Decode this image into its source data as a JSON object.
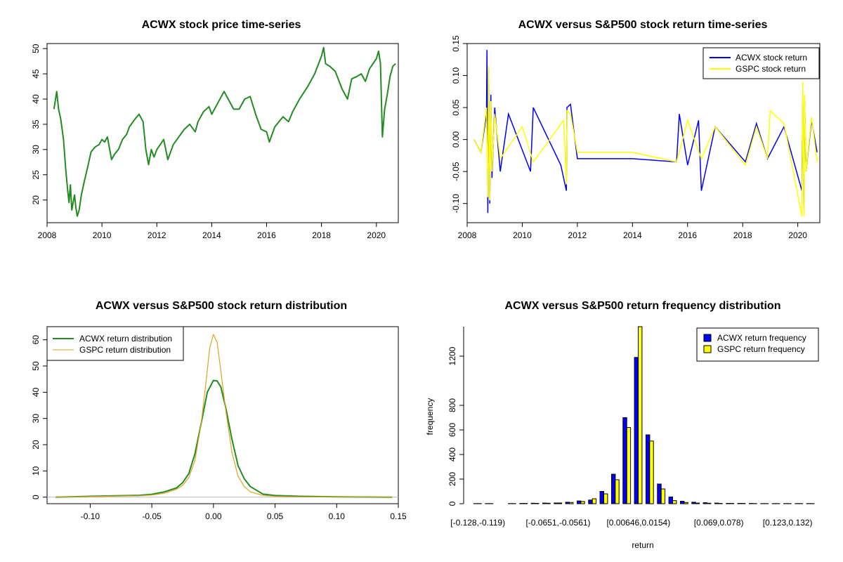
{
  "colors": {
    "price": "#228B22",
    "acwx_ret": "#0000FF",
    "gspc_ret": "#FFFF00",
    "acwx_density": "#228B22",
    "gspc_density": "#DAA520",
    "acwx_bar": "#0000FF",
    "gspc_bar": "#FFFF00"
  },
  "chart_data": [
    {
      "id": "price",
      "type": "line",
      "title": "ACWX stock price time-series",
      "xlabel": "",
      "ylabel": "",
      "xlim": [
        2008.0,
        2020.8
      ],
      "ylim": [
        15.5,
        51.0
      ],
      "x_ticks": [
        2008,
        2010,
        2012,
        2014,
        2016,
        2018,
        2020
      ],
      "x_tick_labels": [
        "2008",
        "2010",
        "2012",
        "2014",
        "2016",
        "2018",
        "2020"
      ],
      "y_ticks": [
        20,
        25,
        30,
        35,
        40,
        45,
        50
      ],
      "y_tick_labels": [
        "20",
        "25",
        "30",
        "35",
        "40",
        "45",
        "50"
      ],
      "series": [
        {
          "name": "ACWX price",
          "x": [
            2008.25,
            2008.35,
            2008.42,
            2008.5,
            2008.6,
            2008.68,
            2008.75,
            2008.8,
            2008.85,
            2008.9,
            2008.95,
            2009.0,
            2009.05,
            2009.1,
            2009.17,
            2009.25,
            2009.35,
            2009.5,
            2009.6,
            2009.75,
            2009.9,
            2010.0,
            2010.1,
            2010.2,
            2010.35,
            2010.45,
            2010.6,
            2010.75,
            2010.9,
            2011.0,
            2011.2,
            2011.35,
            2011.5,
            2011.6,
            2011.7,
            2011.8,
            2011.9,
            2012.0,
            2012.25,
            2012.4,
            2012.6,
            2012.8,
            2013.0,
            2013.2,
            2013.4,
            2013.5,
            2013.7,
            2013.9,
            2014.0,
            2014.2,
            2014.45,
            2014.6,
            2014.8,
            2015.0,
            2015.2,
            2015.4,
            2015.6,
            2015.8,
            2016.0,
            2016.1,
            2016.3,
            2016.45,
            2016.6,
            2016.8,
            2016.95,
            2017.2,
            2017.5,
            2017.75,
            2018.0,
            2018.08,
            2018.15,
            2018.3,
            2018.5,
            2018.75,
            2018.95,
            2019.1,
            2019.3,
            2019.45,
            2019.6,
            2019.75,
            2020.0,
            2020.08,
            2020.15,
            2020.22,
            2020.3,
            2020.4,
            2020.5,
            2020.6,
            2020.7
          ],
          "values": [
            38.0,
            41.5,
            38.0,
            36.0,
            32.0,
            26.0,
            22.0,
            19.5,
            23.0,
            18.0,
            19.5,
            21.0,
            18.5,
            16.8,
            18.0,
            21.0,
            23.5,
            27.0,
            29.5,
            30.5,
            31.0,
            32.0,
            31.5,
            32.5,
            28.0,
            29.0,
            30.0,
            32.0,
            33.0,
            34.5,
            36.0,
            37.0,
            35.5,
            30.0,
            27.0,
            30.0,
            28.5,
            30.0,
            32.0,
            28.0,
            31.0,
            32.5,
            34.0,
            35.0,
            33.5,
            35.5,
            37.5,
            38.5,
            37.0,
            39.0,
            41.5,
            40.0,
            38.0,
            38.0,
            40.0,
            40.5,
            37.0,
            34.0,
            33.5,
            31.5,
            34.5,
            35.5,
            36.5,
            35.5,
            37.5,
            40.0,
            42.5,
            45.0,
            48.5,
            50.2,
            47.0,
            46.5,
            45.5,
            42.0,
            40.0,
            44.0,
            44.5,
            45.0,
            43.5,
            46.0,
            48.0,
            49.5,
            47.0,
            32.5,
            38.0,
            41.0,
            44.5,
            46.5,
            47.0
          ]
        }
      ]
    },
    {
      "id": "returns",
      "type": "line",
      "title": "ACWX versus S&P500 stock return time-series",
      "xlabel": "",
      "ylabel": "",
      "xlim": [
        2008.0,
        2020.8
      ],
      "ylim": [
        -0.13,
        0.15
      ],
      "x_ticks": [
        2008,
        2010,
        2012,
        2014,
        2016,
        2018,
        2020
      ],
      "x_tick_labels": [
        "2008",
        "2010",
        "2012",
        "2014",
        "2016",
        "2018",
        "2020"
      ],
      "y_ticks": [
        -0.1,
        -0.05,
        0.0,
        0.05,
        0.1,
        0.15
      ],
      "y_tick_labels": [
        "-0.10",
        "-0.05",
        "0.00",
        "0.05",
        "0.10",
        "0.15"
      ],
      "legend": [
        "ACWX stock return",
        "GSPC stock return"
      ],
      "legend_position": "top-right",
      "series": [
        {
          "name": "ACWX stock return",
          "x": [
            2008.25,
            2008.5,
            2008.7,
            2008.72,
            2008.75,
            2008.78,
            2008.82,
            2008.86,
            2008.9,
            2009.0,
            2009.2,
            2009.5,
            2010.3,
            2010.4,
            2011.4,
            2011.6,
            2011.62,
            2011.75,
            2012.0,
            2014.0,
            2015.6,
            2015.7,
            2016.0,
            2016.4,
            2016.5,
            2017.0,
            2018.1,
            2018.5,
            2018.9,
            2019.5,
            2020.15,
            2020.18,
            2020.22,
            2020.25,
            2020.3,
            2020.5,
            2020.7
          ],
          "values": [
            0.0,
            -0.02,
            0.04,
            0.14,
            -0.115,
            0.11,
            -0.1,
            0.07,
            -0.06,
            0.05,
            -0.05,
            0.04,
            -0.05,
            0.05,
            -0.04,
            -0.08,
            0.05,
            0.055,
            -0.03,
            -0.03,
            -0.035,
            0.04,
            -0.04,
            0.03,
            -0.08,
            0.02,
            -0.035,
            0.025,
            -0.03,
            0.02,
            -0.08,
            0.065,
            -0.115,
            0.06,
            -0.05,
            0.03,
            -0.02
          ]
        },
        {
          "name": "GSPC stock return",
          "x": [
            2008.25,
            2008.5,
            2008.7,
            2008.75,
            2008.78,
            2008.82,
            2008.86,
            2008.9,
            2009.0,
            2009.2,
            2010.0,
            2010.4,
            2011.5,
            2011.6,
            2011.62,
            2011.75,
            2012.0,
            2014.0,
            2015.6,
            2016.0,
            2016.5,
            2017.0,
            2018.1,
            2018.5,
            2018.9,
            2019.0,
            2019.5,
            2020.15,
            2020.18,
            2020.22,
            2020.25,
            2020.3,
            2020.5,
            2020.7
          ],
          "values": [
            0.0,
            -0.02,
            0.05,
            -0.09,
            0.115,
            -0.095,
            0.06,
            -0.05,
            0.04,
            -0.03,
            0.02,
            -0.035,
            0.03,
            -0.07,
            0.045,
            0.04,
            -0.02,
            -0.02,
            -0.035,
            0.03,
            -0.03,
            0.02,
            -0.04,
            0.02,
            -0.03,
            0.045,
            0.025,
            -0.12,
            0.09,
            -0.12,
            0.07,
            -0.05,
            0.035,
            -0.035
          ]
        }
      ]
    },
    {
      "id": "density",
      "type": "line",
      "title": "ACWX versus S&P500 stock return distribution",
      "xlabel": "",
      "ylabel": "",
      "xlim": [
        -0.135,
        0.15
      ],
      "ylim": [
        -2.5,
        65.0
      ],
      "x_ticks": [
        -0.1,
        -0.05,
        0.0,
        0.05,
        0.1,
        0.15
      ],
      "x_tick_labels": [
        "-0.10",
        "-0.05",
        "0.00",
        "0.05",
        "0.10",
        "0.15"
      ],
      "y_ticks": [
        0,
        10,
        20,
        30,
        40,
        50,
        60
      ],
      "y_tick_labels": [
        "0",
        "10",
        "20",
        "30",
        "40",
        "50",
        "60"
      ],
      "legend": [
        "ACWX return distribution",
        "GSPC return distribution"
      ],
      "legend_position": "top-left",
      "series": [
        {
          "name": "ACWX return distribution",
          "x": [
            -0.128,
            -0.1,
            -0.08,
            -0.06,
            -0.05,
            -0.04,
            -0.03,
            -0.025,
            -0.02,
            -0.015,
            -0.01,
            -0.005,
            0.0,
            0.003,
            0.006,
            0.01,
            0.015,
            0.02,
            0.025,
            0.03,
            0.04,
            0.05,
            0.07,
            0.1,
            0.145
          ],
          "values": [
            0.0,
            0.3,
            0.5,
            0.7,
            1.1,
            2.0,
            3.5,
            5.5,
            9.0,
            16.5,
            28.0,
            40.0,
            44.5,
            44.3,
            42.0,
            34.0,
            22.0,
            12.0,
            7.0,
            4.0,
            1.2,
            0.6,
            0.3,
            0.1,
            0.0
          ]
        },
        {
          "name": "GSPC return distribution",
          "x": [
            -0.128,
            -0.1,
            -0.08,
            -0.06,
            -0.05,
            -0.04,
            -0.03,
            -0.025,
            -0.02,
            -0.015,
            -0.01,
            -0.006,
            -0.003,
            0.0,
            0.003,
            0.006,
            0.01,
            0.015,
            0.02,
            0.025,
            0.03,
            0.04,
            0.05,
            0.07,
            0.1,
            0.145
          ],
          "values": [
            0.0,
            0.2,
            0.4,
            0.5,
            0.8,
            1.5,
            3.0,
            4.5,
            7.5,
            14.0,
            28.0,
            44.0,
            57.0,
            62.0,
            59.0,
            48.0,
            33.0,
            17.0,
            8.0,
            4.0,
            2.0,
            0.7,
            0.3,
            0.1,
            0.05,
            0.0
          ]
        }
      ],
      "baseline": 0
    },
    {
      "id": "freq",
      "type": "bar",
      "title": "ACWX versus S&P500 return frequency distribution",
      "xlabel": "return",
      "ylabel": "frequency",
      "ylim": [
        0,
        1440
      ],
      "y_ticks": [
        0,
        200,
        400,
        600,
        800,
        1200
      ],
      "y_tick_labels": [
        "0",
        "200",
        "400",
        "600",
        "800",
        "1200"
      ],
      "x_tick_labels": [
        "[-0.128,-0.119)",
        "[-0.0651,-0.0561)",
        "[0.00646,0.0154)",
        "[0.069,0.078)",
        "[0.123,0.132)"
      ],
      "x_tick_positions": [
        0,
        7,
        14,
        21,
        27
      ],
      "categories_count": 30,
      "legend": [
        "ACWX return frequency",
        "GSPC return frequency"
      ],
      "legend_position": "top-right",
      "series": [
        {
          "name": "ACWX return frequency",
          "values": [
            1,
            1,
            0,
            1,
            2,
            4,
            5,
            6,
            12,
            22,
            30,
            100,
            240,
            700,
            1190,
            560,
            160,
            55,
            20,
            12,
            8,
            5,
            3,
            3,
            2,
            1,
            1,
            1,
            1,
            1
          ]
        },
        {
          "name": "GSPC return frequency",
          "values": [
            1,
            1,
            0,
            1,
            2,
            3,
            4,
            6,
            10,
            18,
            40,
            80,
            195,
            620,
            1440,
            510,
            120,
            25,
            10,
            5,
            4,
            2,
            2,
            2,
            1,
            1,
            1,
            1,
            1,
            1
          ]
        }
      ]
    }
  ]
}
